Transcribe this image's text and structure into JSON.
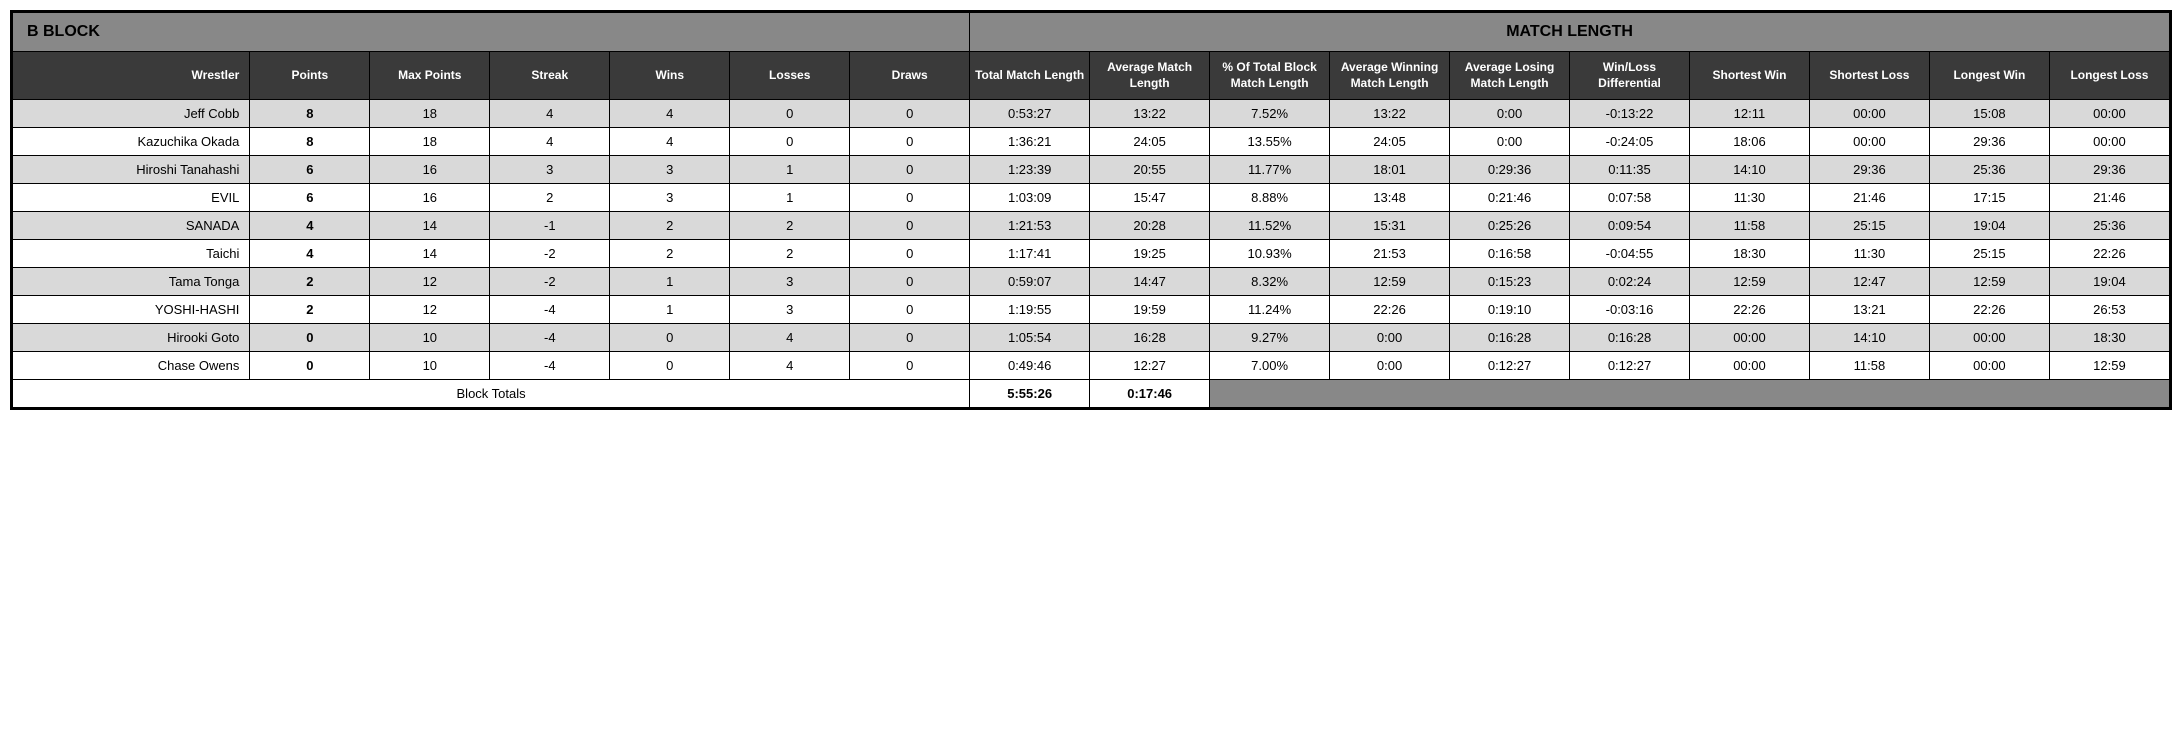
{
  "header": {
    "left": "B BLOCK",
    "right": "MATCH LENGTH"
  },
  "columns": [
    "Wrestler",
    "Points",
    "Max Points",
    "Streak",
    "Wins",
    "Losses",
    "Draws",
    "Total Match Length",
    "Average Match Length",
    "% Of Total Block Match Length",
    "Average Winning Match Length",
    "Average Losing Match Length",
    "Win/Loss Differential",
    "Shortest Win",
    "Shortest Loss",
    "Longest Win",
    "Longest Loss"
  ],
  "rows": [
    {
      "wrestler": "Jeff Cobb",
      "points": "8",
      "max": "18",
      "streak": "4",
      "wins": "4",
      "losses": "0",
      "draws": "0",
      "total": "0:53:27",
      "avg": "13:22",
      "pct": "7.52%",
      "avgW": "13:22",
      "avgL": "0:00",
      "diff": "-0:13:22",
      "sW": "12:11",
      "sL": "00:00",
      "lW": "15:08",
      "lL": "00:00"
    },
    {
      "wrestler": "Kazuchika Okada",
      "points": "8",
      "max": "18",
      "streak": "4",
      "wins": "4",
      "losses": "0",
      "draws": "0",
      "total": "1:36:21",
      "avg": "24:05",
      "pct": "13.55%",
      "avgW": "24:05",
      "avgL": "0:00",
      "diff": "-0:24:05",
      "sW": "18:06",
      "sL": "00:00",
      "lW": "29:36",
      "lL": "00:00"
    },
    {
      "wrestler": "Hiroshi Tanahashi",
      "points": "6",
      "max": "16",
      "streak": "3",
      "wins": "3",
      "losses": "1",
      "draws": "0",
      "total": "1:23:39",
      "avg": "20:55",
      "pct": "11.77%",
      "avgW": "18:01",
      "avgL": "0:29:36",
      "diff": "0:11:35",
      "sW": "14:10",
      "sL": "29:36",
      "lW": "25:36",
      "lL": "29:36"
    },
    {
      "wrestler": "EVIL",
      "points": "6",
      "max": "16",
      "streak": "2",
      "wins": "3",
      "losses": "1",
      "draws": "0",
      "total": "1:03:09",
      "avg": "15:47",
      "pct": "8.88%",
      "avgW": "13:48",
      "avgL": "0:21:46",
      "diff": "0:07:58",
      "sW": "11:30",
      "sL": "21:46",
      "lW": "17:15",
      "lL": "21:46"
    },
    {
      "wrestler": "SANADA",
      "points": "4",
      "max": "14",
      "streak": "-1",
      "wins": "2",
      "losses": "2",
      "draws": "0",
      "total": "1:21:53",
      "avg": "20:28",
      "pct": "11.52%",
      "avgW": "15:31",
      "avgL": "0:25:26",
      "diff": "0:09:54",
      "sW": "11:58",
      "sL": "25:15",
      "lW": "19:04",
      "lL": "25:36"
    },
    {
      "wrestler": "Taichi",
      "points": "4",
      "max": "14",
      "streak": "-2",
      "wins": "2",
      "losses": "2",
      "draws": "0",
      "total": "1:17:41",
      "avg": "19:25",
      "pct": "10.93%",
      "avgW": "21:53",
      "avgL": "0:16:58",
      "diff": "-0:04:55",
      "sW": "18:30",
      "sL": "11:30",
      "lW": "25:15",
      "lL": "22:26"
    },
    {
      "wrestler": "Tama Tonga",
      "points": "2",
      "max": "12",
      "streak": "-2",
      "wins": "1",
      "losses": "3",
      "draws": "0",
      "total": "0:59:07",
      "avg": "14:47",
      "pct": "8.32%",
      "avgW": "12:59",
      "avgL": "0:15:23",
      "diff": "0:02:24",
      "sW": "12:59",
      "sL": "12:47",
      "lW": "12:59",
      "lL": "19:04"
    },
    {
      "wrestler": "YOSHI-HASHI",
      "points": "2",
      "max": "12",
      "streak": "-4",
      "wins": "1",
      "losses": "3",
      "draws": "0",
      "total": "1:19:55",
      "avg": "19:59",
      "pct": "11.24%",
      "avgW": "22:26",
      "avgL": "0:19:10",
      "diff": "-0:03:16",
      "sW": "22:26",
      "sL": "13:21",
      "lW": "22:26",
      "lL": "26:53"
    },
    {
      "wrestler": "Hirooki Goto",
      "points": "0",
      "max": "10",
      "streak": "-4",
      "wins": "0",
      "losses": "4",
      "draws": "0",
      "total": "1:05:54",
      "avg": "16:28",
      "pct": "9.27%",
      "avgW": "0:00",
      "avgL": "0:16:28",
      "diff": "0:16:28",
      "sW": "00:00",
      "sL": "14:10",
      "lW": "00:00",
      "lL": "18:30"
    },
    {
      "wrestler": "Chase Owens",
      "points": "0",
      "max": "10",
      "streak": "-4",
      "wins": "0",
      "losses": "4",
      "draws": "0",
      "total": "0:49:46",
      "avg": "12:27",
      "pct": "7.00%",
      "avgW": "0:00",
      "avgL": "0:12:27",
      "diff": "0:12:27",
      "sW": "00:00",
      "sL": "11:58",
      "lW": "00:00",
      "lL": "12:59"
    }
  ],
  "totals": {
    "label": "Block Totals",
    "total": "5:55:26",
    "avg": "0:17:46"
  },
  "styling": {
    "header_bg": "#888888",
    "col_header_bg": "#3a3a3a",
    "col_header_text": "#ffffff",
    "row_odd_bg": "#d9d9d9",
    "row_even_bg": "#ffffff",
    "border_color": "#000000",
    "font_family": "Arial",
    "header_fontsize_pt": 12,
    "cell_fontsize_pt": 10
  }
}
